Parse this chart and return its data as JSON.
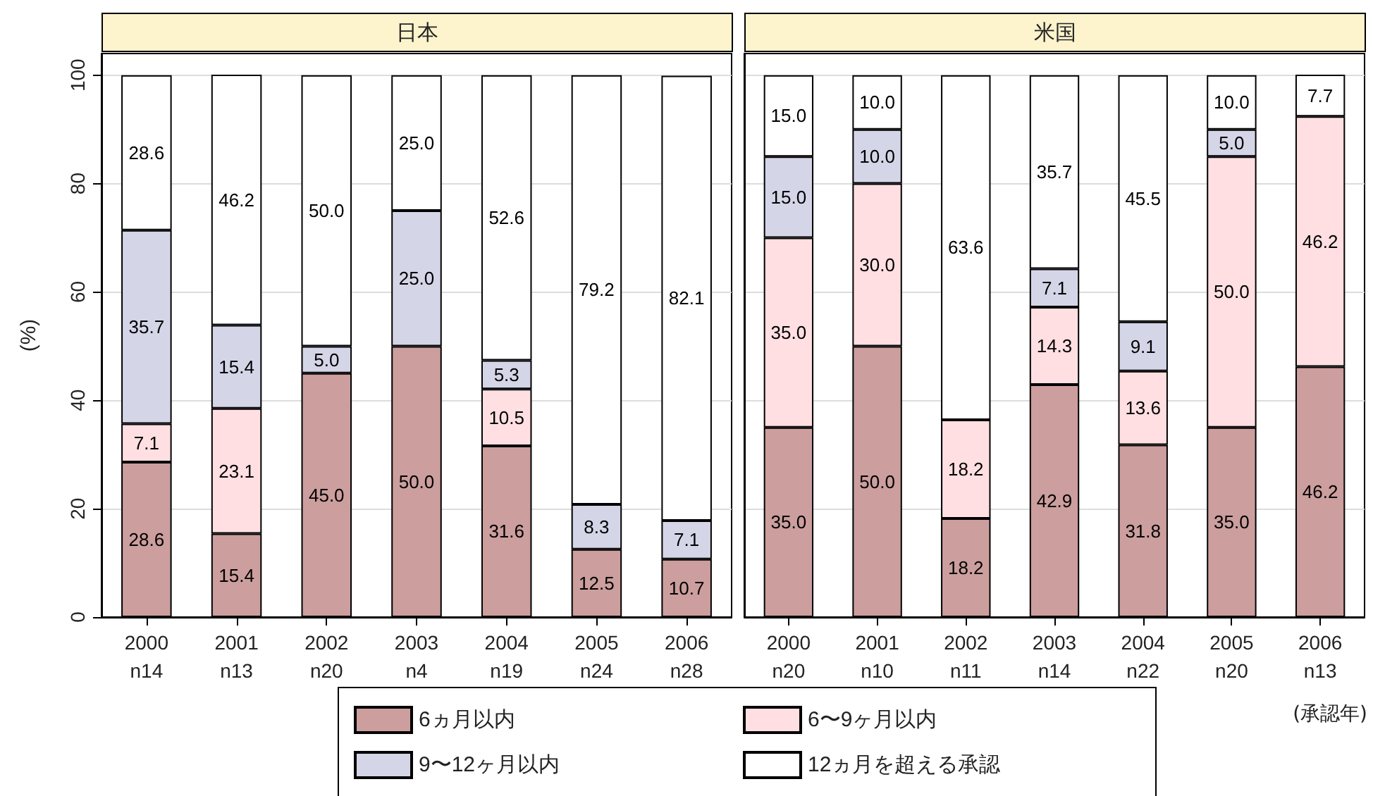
{
  "chart_data": [
    {
      "type": "bar",
      "title": "日本",
      "ylabel": "(%)",
      "stacked": true,
      "grid": "y",
      "legend": "bottom",
      "categories": [
        "2000\nn14",
        "2001\nn13",
        "2002\nn20",
        "2003\nn4",
        "2004\nn19",
        "2005\nn24",
        "2006\nn28"
      ],
      "ylim": [
        0,
        104
      ],
      "yticks": [
        0,
        20,
        40,
        60,
        80,
        100
      ],
      "series": [
        {
          "name": "6ヵ月以内",
          "color": "#cc9e9e",
          "values": [
            28.6,
            15.4,
            45.0,
            50.0,
            31.6,
            12.5,
            10.7
          ],
          "value_labels": [
            "28.6",
            "15.4",
            "45.0",
            "50.0",
            "31.6",
            "12.5",
            "10.7"
          ]
        },
        {
          "name": "6〜9ヶ月以内",
          "color": "#ffdfe2",
          "values": [
            7.1,
            23.1,
            null,
            null,
            10.5,
            null,
            null
          ],
          "value_labels": [
            "7.1",
            "23.1",
            null,
            null,
            "10.5",
            null,
            null
          ]
        },
        {
          "name": "9〜12ヶ月以内",
          "color": "#d5d5e8",
          "values": [
            35.7,
            15.4,
            5.0,
            25.0,
            5.3,
            8.3,
            7.1
          ],
          "value_labels": [
            "35.7",
            "15.4",
            "5.0",
            "25.0",
            "5.3",
            "8.3",
            "7.1"
          ]
        },
        {
          "name": "12ヵ月を超える承認",
          "color": "#ffffff",
          "values": [
            28.6,
            46.2,
            50.0,
            25.0,
            52.6,
            79.2,
            82.1
          ],
          "value_labels": [
            "28.6",
            "46.2",
            "50.0",
            "25.0",
            "52.6",
            "79.2",
            "82.1"
          ]
        }
      ]
    },
    {
      "type": "bar",
      "title": "米国",
      "stacked": true,
      "grid": "y",
      "tick_labels": "x",
      "categories": [
        "2000\nn20",
        "2001\nn10",
        "2002\nn11",
        "2003\nn14",
        "2004\nn22",
        "2005\nn20",
        "2006\nn13"
      ],
      "ylim": [
        0,
        104
      ],
      "yticks": [
        0,
        20,
        40,
        60,
        80,
        100
      ],
      "annotations": [
        "(承認年)"
      ],
      "series": [
        {
          "color": "#cc9e9e",
          "values": [
            35.0,
            50.0,
            18.2,
            42.9,
            31.8,
            35.0,
            46.2
          ],
          "value_labels": [
            "35.0",
            "50.0",
            "18.2",
            "42.9",
            "31.8",
            "35.0",
            "46.2"
          ]
        },
        {
          "color": "#ffdfe2",
          "values": [
            35.0,
            30.0,
            18.2,
            14.3,
            13.6,
            50.0,
            46.2
          ],
          "value_labels": [
            "35.0",
            "30.0",
            "18.2",
            "14.3",
            "13.6",
            "50.0",
            "46.2"
          ]
        },
        {
          "color": "#d5d5e8",
          "values": [
            15.0,
            10.0,
            null,
            7.1,
            9.1,
            5.0,
            null
          ],
          "value_labels": [
            "15.0",
            "10.0",
            null,
            "7.1",
            "9.1",
            "5.0",
            null
          ]
        },
        {
          "color": "#ffffff",
          "values": [
            15.0,
            10.0,
            63.6,
            35.7,
            45.5,
            10.0,
            7.7
          ],
          "value_labels": [
            "15.0",
            "10.0",
            "63.6",
            "35.7",
            "45.5",
            "10.0",
            "7.7"
          ]
        }
      ]
    }
  ]
}
